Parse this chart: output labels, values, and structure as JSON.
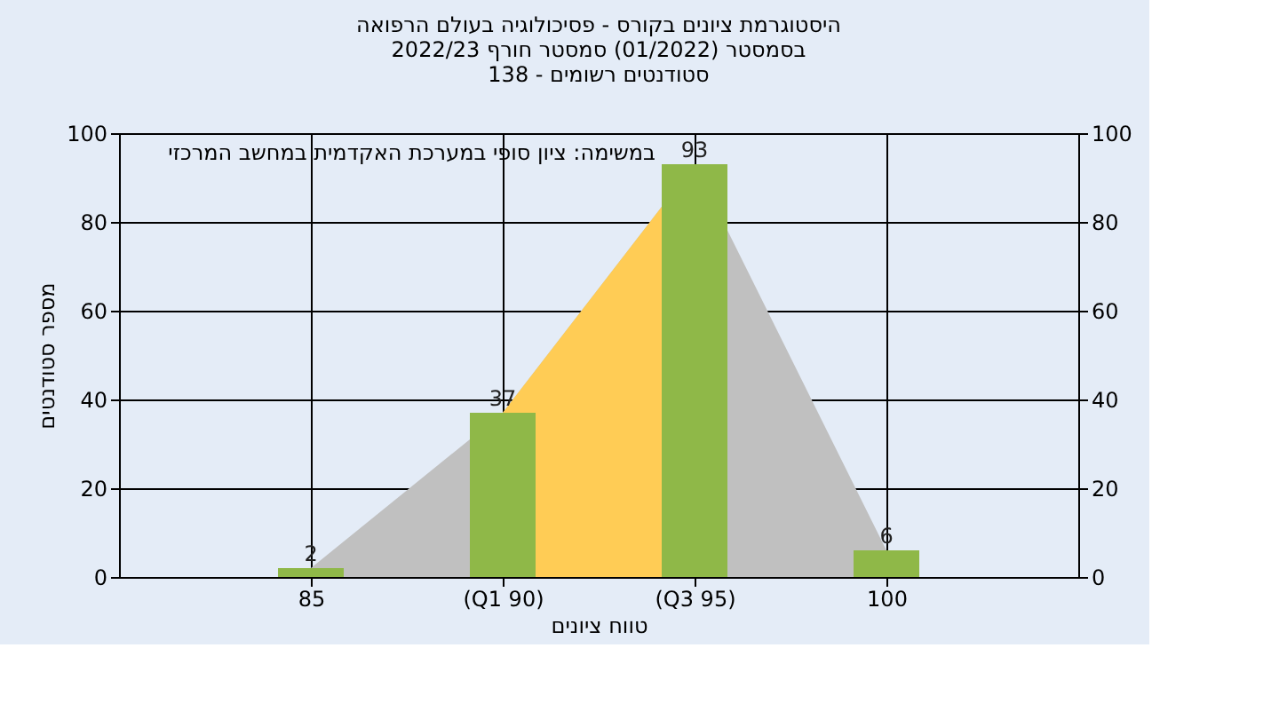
{
  "chart_data": {
    "type": "bar",
    "title": [
      "היסטוגרמת ציונים בקורס - פסיכולוגיה בעולם הרפואה",
      "בסמסטר  (01/2022)  סמסטר חורף 2022/23",
      "סטודנטים רשומים - 138"
    ],
    "xlabel": "טווח ציונים",
    "ylabel": "מספר סטודנטים",
    "annotations": [
      "במשימה: ציון סופי במערכת האקדמית במחשב המרכזי"
    ],
    "categories": [
      "85",
      "(Q1 90)",
      "(Q3 95)",
      "100"
    ],
    "series": [
      {
        "type": "area",
        "color": "#c0c0c0",
        "values": [
          2,
          37,
          93,
          6
        ]
      },
      {
        "type": "area",
        "color": "#ffcc55",
        "values": [
          null,
          37,
          93,
          null
        ]
      },
      {
        "color": "#8fb848",
        "values": [
          2,
          37,
          93,
          6
        ],
        "value_labels": [
          "2",
          "37",
          "93",
          "6"
        ]
      }
    ],
    "ylim": [
      0,
      100
    ],
    "yticks": [
      0,
      20,
      40,
      60,
      80,
      100
    ],
    "y2lim": [
      0,
      100
    ],
    "y2ticks": [
      0,
      20,
      40,
      60,
      80,
      100
    ],
    "grid": true
  }
}
